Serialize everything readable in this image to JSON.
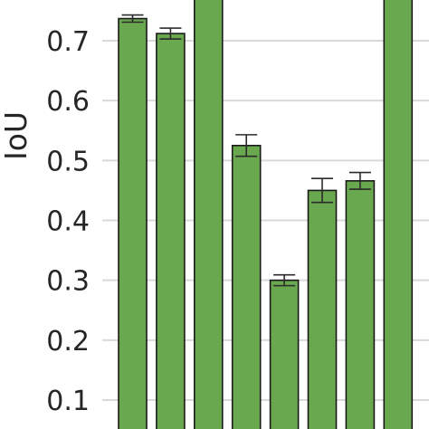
{
  "chart_data": {
    "type": "bar",
    "ylabel": "IoU",
    "ylim": [
      0.05,
      0.77
    ],
    "yticks": [
      "0.1",
      "0.2",
      "0.3",
      "0.4",
      "0.5",
      "0.6",
      "0.7"
    ],
    "grid": true,
    "bar_color": "#6aa84f",
    "edge_color": "#1a1a1a",
    "bars": [
      {
        "value": 0.737,
        "err": 0.006
      },
      {
        "value": 0.712,
        "err": 0.009
      },
      {
        "value": 0.78,
        "err": null
      },
      {
        "value": 0.525,
        "err": 0.018
      },
      {
        "value": 0.3,
        "err": 0.009
      },
      {
        "value": 0.45,
        "err": 0.02
      },
      {
        "value": 0.466,
        "err": 0.014
      },
      {
        "value": 0.78,
        "err": null
      }
    ]
  }
}
